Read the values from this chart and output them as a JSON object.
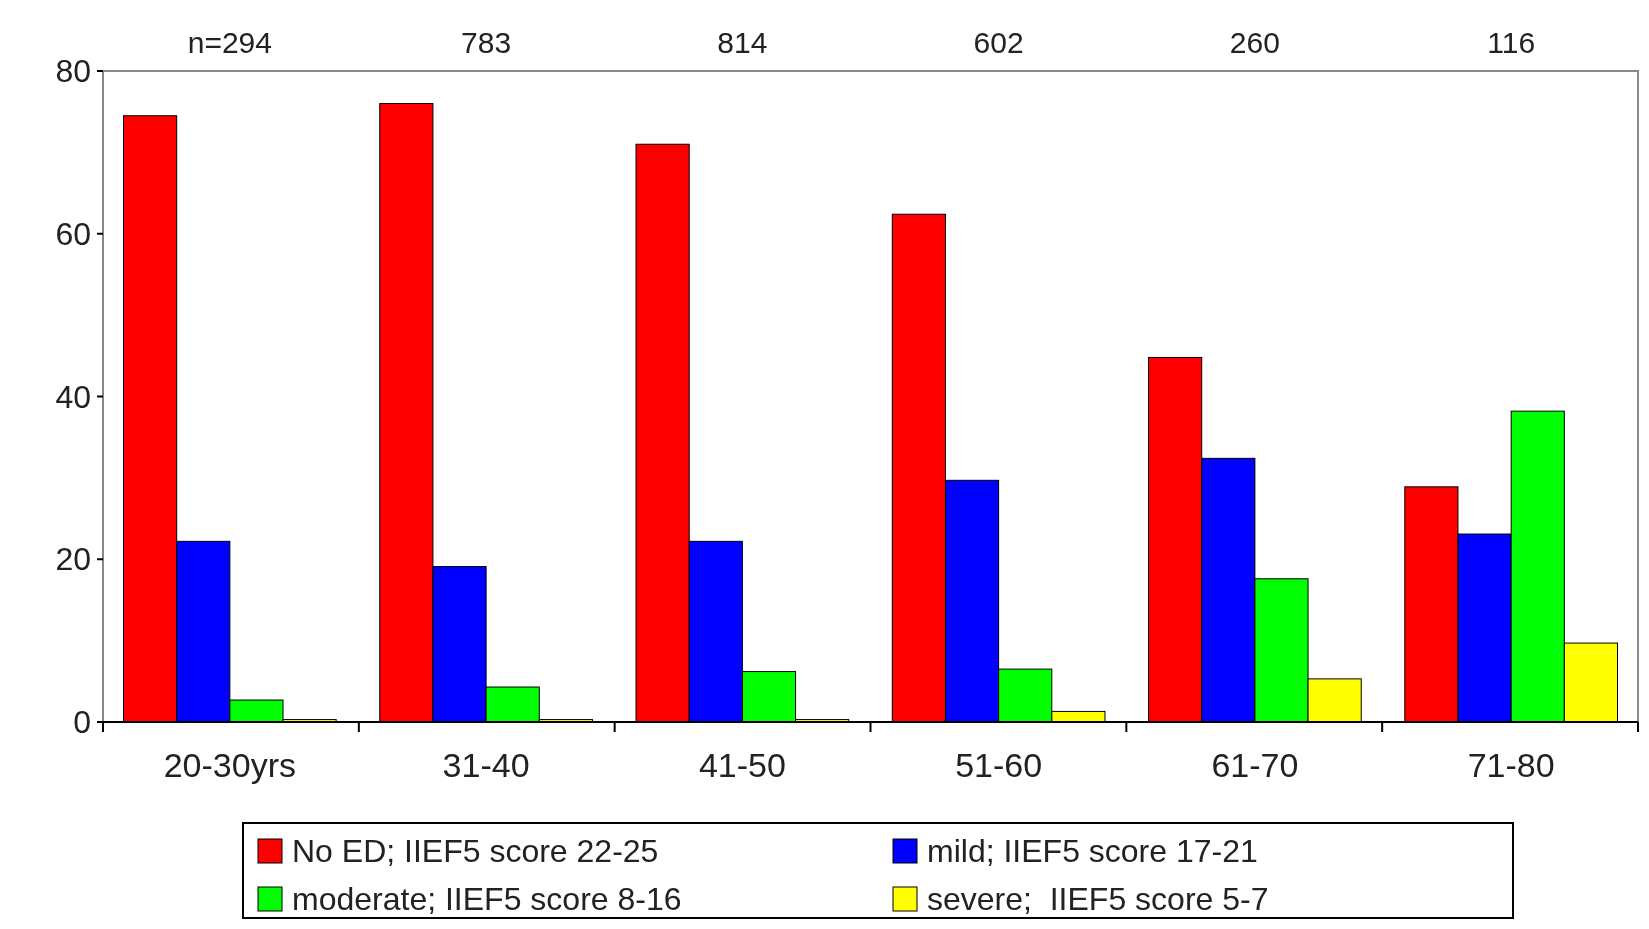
{
  "chart_data": {
    "type": "bar",
    "categories": [
      "20-30yrs",
      "31-40",
      "41-50",
      "51-60",
      "61-70",
      "71-80"
    ],
    "series": [
      {
        "name": "No ED; IIEF5 score 22-25",
        "color": "#ff0000",
        "values": [
          74.5,
          76,
          71,
          62.4,
          44.8,
          28.9
        ]
      },
      {
        "name": "mild; IIEF5 score 17-21",
        "color": "#0000ff",
        "values": [
          22.2,
          19.1,
          22.2,
          29.7,
          32.4,
          23.1
        ]
      },
      {
        "name": "moderate; IIEF5 score 8-16",
        "color": "#00ff00",
        "values": [
          2.7,
          4.3,
          6.2,
          6.5,
          17.6,
          38.2
        ]
      },
      {
        "name": "severe;  IIEF5 score 5-7",
        "color": "#ffff00",
        "values": [
          0.3,
          0.3,
          0.3,
          1.3,
          5.3,
          9.7
        ]
      }
    ],
    "annotations": [
      "n=294",
      "783",
      "814",
      "602",
      "260",
      "116"
    ],
    "ylim": [
      0,
      80
    ],
    "yticks": [
      0,
      20,
      40,
      60,
      80
    ],
    "grid": false,
    "legend": "bottom"
  }
}
